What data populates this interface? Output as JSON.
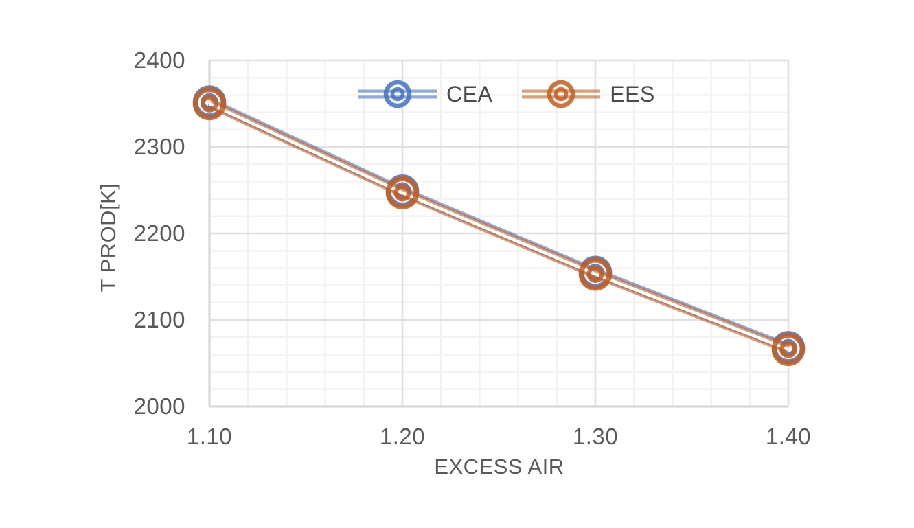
{
  "chart_data": {
    "type": "line",
    "title": "",
    "xlabel": "EXCESS AIR",
    "ylabel": "T PROD[K]",
    "x": [
      1.1,
      1.2,
      1.3,
      1.4
    ],
    "series": [
      {
        "name": "CEA",
        "color": "#4472C4",
        "values": [
          2352,
          2249,
          2155,
          2068
        ]
      },
      {
        "name": "EES",
        "color": "#C55E1F",
        "values": [
          2350,
          2247,
          2153,
          2066
        ]
      }
    ],
    "xlim": [
      1.1,
      1.4
    ],
    "ylim": [
      2000,
      2400
    ],
    "x_ticks": [
      "1.10",
      "1.20",
      "1.30",
      "1.40"
    ],
    "x_tick_values": [
      1.1,
      1.2,
      1.3,
      1.4
    ],
    "y_ticks": [
      "2000",
      "2100",
      "2200",
      "2300",
      "2400"
    ],
    "y_tick_values": [
      2000,
      2100,
      2200,
      2300,
      2400
    ],
    "x_minor_step": 0.02,
    "y_minor_step": 20,
    "grid": "major+minor",
    "legend_position": "top-center-inside",
    "marker": "concentric-circles",
    "line_style": "double",
    "marker_opacity": 0.85,
    "line_opacity": 0.6,
    "colors": {
      "grid_minor": "#F2F2F2",
      "grid_major": "#E0E0E0",
      "axis_line": "#D4D4D4",
      "tick_text": "#595959",
      "legend_text": "#4a4a4a"
    }
  }
}
